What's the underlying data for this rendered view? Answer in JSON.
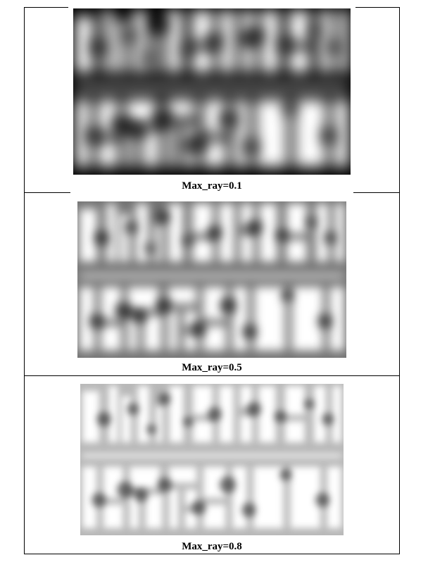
{
  "figure": {
    "panels": [
      {
        "caption": "Max_ray=0.1",
        "blur": 10,
        "darkness": 1.0
      },
      {
        "caption": "Max_ray=0.5",
        "blur": 7,
        "darkness": 0.55
      },
      {
        "caption": "Max_ray=0.8",
        "blur": 5,
        "darkness": 0.28
      }
    ]
  }
}
